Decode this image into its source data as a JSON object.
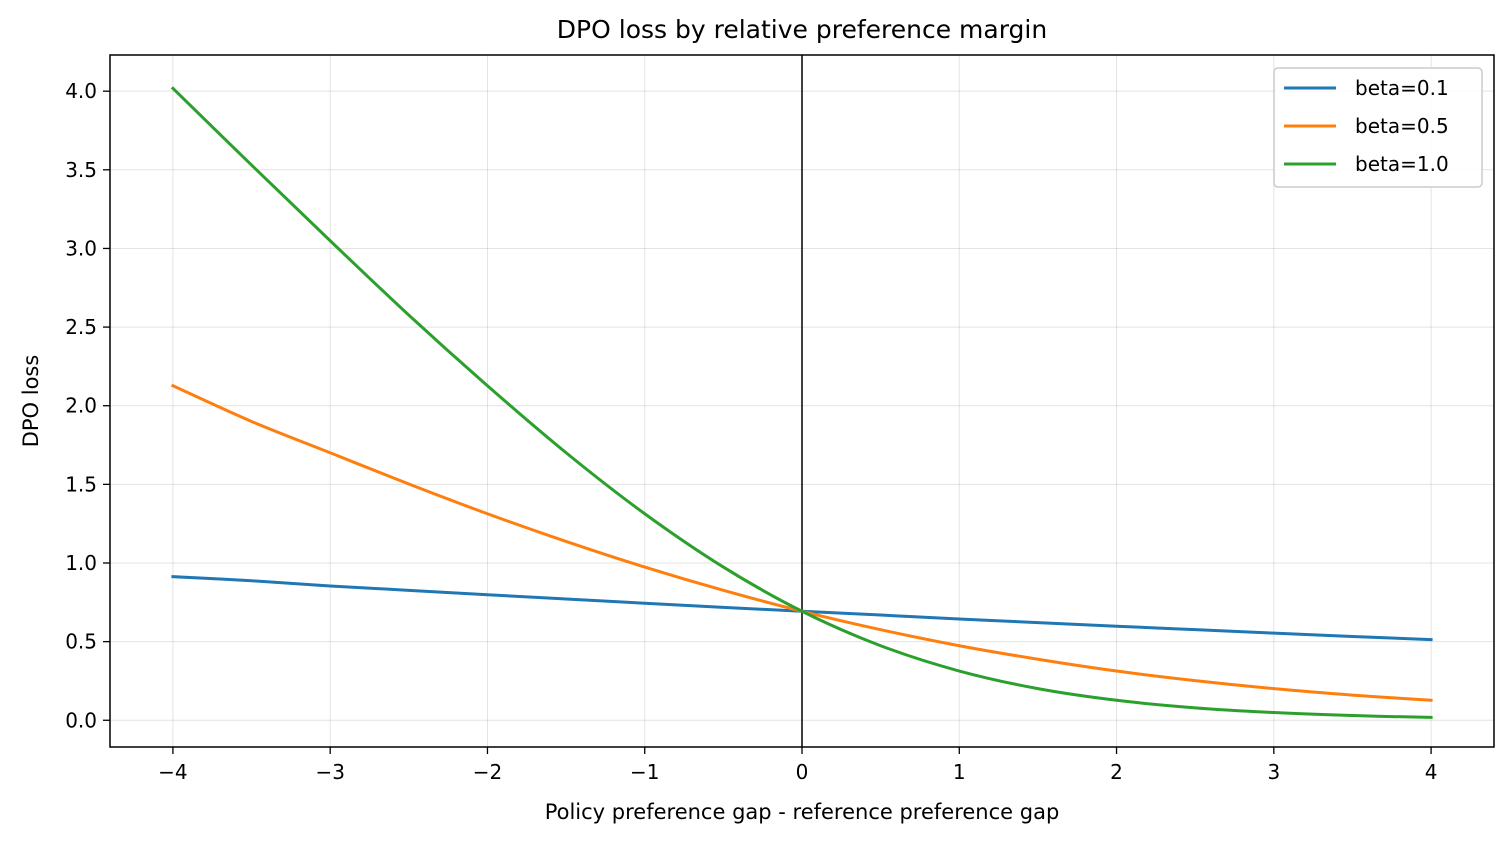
{
  "chart_data": {
    "type": "line",
    "title": "DPO loss by relative preference margin",
    "xlabel": "Policy preference gap - reference preference gap",
    "ylabel": "DPO loss",
    "xlim": [
      -4.4,
      4.4
    ],
    "ylim": [
      -0.17,
      4.23
    ],
    "x_ticks": [
      -4,
      -3,
      -2,
      -1,
      0,
      1,
      2,
      3,
      4
    ],
    "x_tick_labels": [
      "−4",
      "−3",
      "−2",
      "−1",
      "0",
      "1",
      "2",
      "3",
      "4"
    ],
    "y_ticks": [
      0.0,
      0.5,
      1.0,
      1.5,
      2.0,
      2.5,
      3.0,
      3.5,
      4.0
    ],
    "y_tick_labels": [
      "0.0",
      "0.5",
      "1.0",
      "1.5",
      "2.0",
      "2.5",
      "3.0",
      "3.5",
      "4.0"
    ],
    "grid": true,
    "zero_line": "x=0",
    "legend_position": "top-right",
    "x": [
      -4,
      -3.5,
      -3,
      -2.5,
      -2,
      -1.5,
      -1,
      -0.5,
      0,
      0.5,
      1,
      1.5,
      2,
      2.5,
      3,
      3.5,
      4
    ],
    "series": [
      {
        "name": "beta=0.1",
        "color": "#1f77b4",
        "values": [
          0.913,
          0.887,
          0.854,
          0.826,
          0.798,
          0.771,
          0.744,
          0.718,
          0.693,
          0.669,
          0.644,
          0.621,
          0.598,
          0.576,
          0.554,
          0.533,
          0.513
        ]
      },
      {
        "name": "beta=0.5",
        "color": "#ff7f0e",
        "values": [
          2.127,
          1.9,
          1.701,
          1.502,
          1.313,
          1.137,
          0.974,
          0.826,
          0.693,
          0.576,
          0.474,
          0.388,
          0.313,
          0.252,
          0.201,
          0.16,
          0.127
        ]
      },
      {
        "name": "beta=1.0",
        "color": "#2ca02c",
        "values": [
          4.018,
          3.53,
          3.049,
          2.576,
          2.127,
          1.701,
          1.313,
          0.974,
          0.693,
          0.474,
          0.313,
          0.201,
          0.127,
          0.079,
          0.049,
          0.03,
          0.018
        ]
      }
    ]
  }
}
